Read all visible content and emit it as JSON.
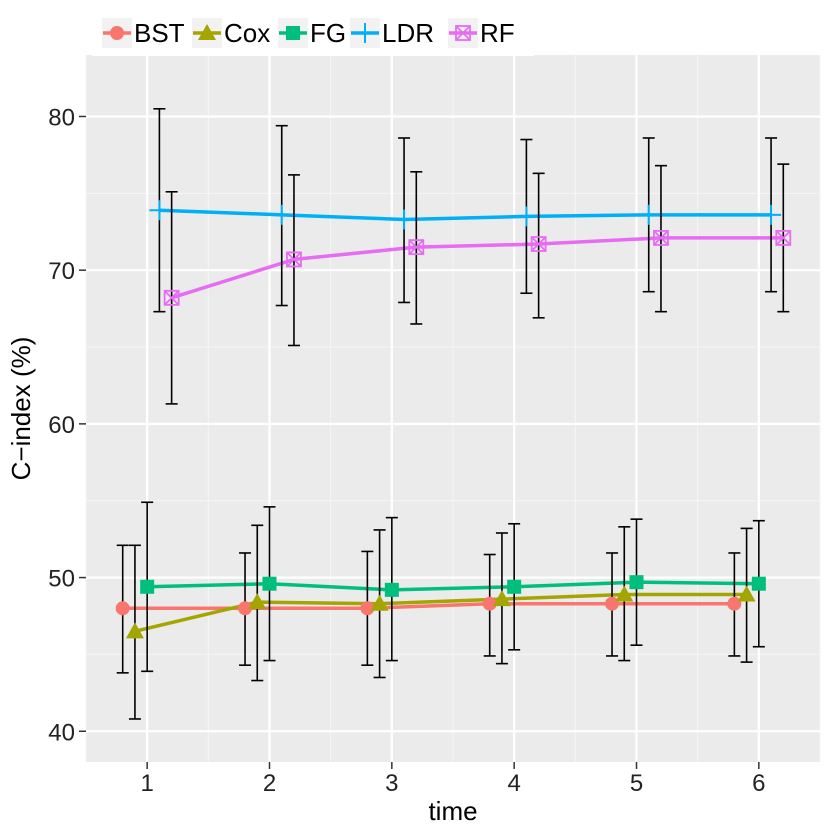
{
  "chart_data": {
    "type": "line",
    "title": "",
    "xlabel": "time",
    "ylabel": "C−index (%)",
    "x": [
      1,
      2,
      3,
      4,
      5,
      6
    ],
    "x_ticks": [
      "1",
      "2",
      "3",
      "4",
      "5",
      "6"
    ],
    "y_ticks": [
      "40",
      "50",
      "60",
      "70",
      "80"
    ],
    "xlim": [
      0.5,
      6.5
    ],
    "ylim": [
      38,
      84
    ],
    "dodge": 0.1,
    "grid": true,
    "legend_position": "top-left",
    "series": [
      {
        "name": "BST",
        "color": "#F8766D",
        "marker": "circle",
        "offset": -2,
        "values": [
          48.0,
          48.0,
          48.0,
          48.3,
          48.3,
          48.3
        ],
        "lower": [
          43.8,
          44.3,
          44.3,
          44.9,
          44.9,
          44.9
        ],
        "upper": [
          52.1,
          51.6,
          51.7,
          51.5,
          51.6,
          51.6
        ]
      },
      {
        "name": "Cox",
        "color": "#A3A500",
        "marker": "triangle",
        "offset": -1,
        "values": [
          46.5,
          48.4,
          48.3,
          48.6,
          48.9,
          48.9
        ],
        "lower": [
          40.8,
          43.3,
          43.5,
          44.4,
          44.6,
          44.5
        ],
        "upper": [
          52.1,
          53.4,
          53.1,
          52.9,
          53.3,
          53.2
        ]
      },
      {
        "name": "FG",
        "color": "#00BF7D",
        "marker": "square",
        "offset": 0,
        "values": [
          49.4,
          49.6,
          49.2,
          49.4,
          49.7,
          49.6
        ],
        "lower": [
          43.9,
          44.6,
          44.6,
          45.3,
          45.6,
          45.5
        ],
        "upper": [
          54.9,
          54.6,
          53.9,
          53.5,
          53.8,
          53.7
        ]
      },
      {
        "name": "LDR",
        "color": "#00B0F6",
        "marker": "plus",
        "offset": 1,
        "values": [
          73.9,
          73.6,
          73.3,
          73.5,
          73.6,
          73.6
        ],
        "lower": [
          67.3,
          67.7,
          67.9,
          68.5,
          68.6,
          68.6
        ],
        "upper": [
          80.5,
          79.4,
          78.6,
          78.5,
          78.6,
          78.6
        ]
      },
      {
        "name": "RF",
        "color": "#E76BF3",
        "marker": "boxx",
        "offset": 2,
        "values": [
          68.2,
          70.7,
          71.5,
          71.7,
          72.1,
          72.1
        ],
        "lower": [
          61.3,
          65.1,
          66.5,
          66.9,
          67.3,
          67.3
        ],
        "upper": [
          75.1,
          76.2,
          76.4,
          76.3,
          76.8,
          76.9
        ]
      }
    ]
  }
}
